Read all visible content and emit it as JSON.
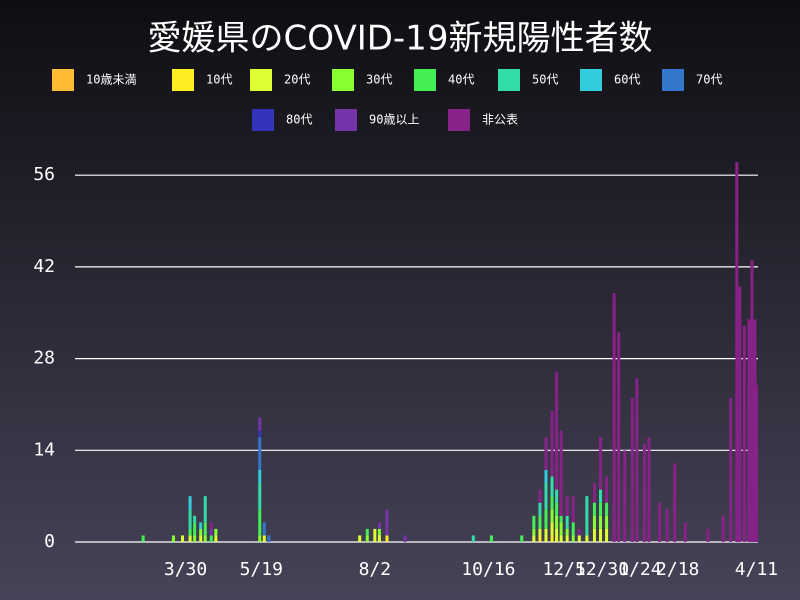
{
  "chart_data": {
    "type": "stacked-bar",
    "title": "愛媛県のCOVID-19新規陽性者数",
    "x": [
      -28,
      -8,
      -2,
      3,
      6,
      10,
      13,
      17,
      20,
      49,
      52,
      55,
      115,
      120,
      125,
      128,
      133,
      145,
      190,
      202,
      222,
      230,
      234,
      238,
      242,
      245,
      248,
      252,
      256,
      260,
      265,
      270,
      274,
      278,
      283,
      286,
      290,
      295,
      298,
      303,
      306,
      313,
      318,
      323,
      330,
      345,
      355,
      360,
      364,
      366,
      369,
      372,
      374,
      376,
      377
    ],
    "xlim": [
      -73,
      378
    ],
    "xticks": [
      {
        "value": 0,
        "label": "3/30"
      },
      {
        "value": 50,
        "label": "5/19"
      },
      {
        "value": 125,
        "label": "8/2"
      },
      {
        "value": 200,
        "label": "10/16"
      },
      {
        "value": 250,
        "label": "12/5"
      },
      {
        "value": 275,
        "label": "12/30"
      },
      {
        "value": 300,
        "label": "1/24"
      },
      {
        "value": 325,
        "label": "2/18"
      },
      {
        "value": 377,
        "label": "4/11"
      }
    ],
    "ylim": [
      0,
      60
    ],
    "yticks": [
      0,
      14,
      28,
      42,
      56
    ],
    "grid": true,
    "series": [
      {
        "name": "10歳未満",
        "color": "#ffbb33",
        "values": [
          0,
          0,
          0,
          0,
          0,
          0,
          0,
          0,
          0,
          0,
          0,
          0,
          0,
          0,
          0,
          0,
          0,
          0,
          0,
          0,
          0,
          0,
          0,
          0,
          0,
          0,
          0,
          0,
          0,
          0,
          0,
          0,
          0,
          0,
          0,
          0,
          0,
          0,
          0,
          0,
          0,
          0,
          0,
          0,
          0,
          0,
          0,
          0,
          0,
          0,
          0,
          0,
          0,
          0,
          0
        ]
      },
      {
        "name": "10代",
        "color": "#ffee22",
        "values": [
          0,
          0,
          0,
          0,
          0,
          0,
          0,
          0,
          0,
          0,
          0,
          0,
          0,
          0,
          0,
          0,
          1,
          0,
          0,
          0,
          0,
          0,
          1,
          0,
          1,
          0,
          0,
          0,
          0,
          0,
          0,
          0,
          0,
          0,
          0,
          0,
          0,
          0,
          0,
          0,
          0,
          0,
          0,
          0,
          0,
          0,
          0,
          0,
          0,
          0,
          0,
          0,
          0,
          0,
          0
        ]
      },
      {
        "name": "20代",
        "color": "#ddff33",
        "values": [
          0,
          0,
          1,
          1,
          0,
          1,
          0,
          0,
          1,
          0,
          1,
          0,
          1,
          0,
          2,
          1,
          0,
          0,
          0,
          0,
          0,
          1,
          1,
          2,
          2,
          2,
          1,
          1,
          0,
          1,
          1,
          2,
          2,
          2,
          0,
          0,
          0,
          0,
          0,
          0,
          0,
          0,
          0,
          0,
          0,
          0,
          0,
          0,
          0,
          0,
          0,
          0,
          0,
          0,
          0
        ]
      },
      {
        "name": "30代",
        "color": "#88ff33",
        "values": [
          0,
          1,
          0,
          0,
          1,
          1,
          1,
          0,
          1,
          1,
          0,
          0,
          0,
          1,
          0,
          1,
          0,
          0,
          0,
          0,
          0,
          1,
          0,
          0,
          2,
          2,
          2,
          1,
          1,
          0,
          0,
          2,
          2,
          2,
          0,
          0,
          0,
          0,
          0,
          0,
          0,
          0,
          0,
          0,
          0,
          0,
          0,
          0,
          0,
          0,
          0,
          0,
          0,
          0,
          0
        ]
      },
      {
        "name": "40代",
        "color": "#44ee55",
        "values": [
          1,
          0,
          0,
          1,
          2,
          0,
          2,
          1,
          0,
          4,
          0,
          0,
          0,
          1,
          0,
          0,
          0,
          0,
          0,
          1,
          1,
          2,
          2,
          3,
          2,
          2,
          1,
          0,
          2,
          0,
          0,
          2,
          2,
          2,
          0,
          0,
          0,
          0,
          0,
          0,
          0,
          0,
          0,
          0,
          0,
          0,
          0,
          0,
          0,
          0,
          0,
          0,
          0,
          0,
          0
        ]
      },
      {
        "name": "50代",
        "color": "#33ddaa",
        "values": [
          0,
          0,
          0,
          3,
          1,
          0,
          4,
          0,
          0,
          4,
          0,
          0,
          0,
          0,
          0,
          0,
          0,
          0,
          1,
          0,
          0,
          0,
          2,
          4,
          3,
          2,
          0,
          2,
          0,
          0,
          6,
          0,
          2,
          0,
          0,
          0,
          0,
          0,
          0,
          0,
          0,
          0,
          0,
          0,
          0,
          0,
          0,
          0,
          0,
          0,
          0,
          0,
          0,
          0,
          0
        ]
      },
      {
        "name": "60代",
        "color": "#33ccdd",
        "values": [
          0,
          0,
          0,
          2,
          0,
          1,
          0,
          0,
          0,
          2,
          0,
          0,
          0,
          0,
          0,
          0,
          0,
          0,
          0,
          0,
          0,
          0,
          0,
          2,
          0,
          0,
          0,
          0,
          0,
          0,
          0,
          0,
          0,
          0,
          0,
          0,
          0,
          0,
          0,
          0,
          0,
          0,
          0,
          0,
          0,
          0,
          0,
          0,
          0,
          0,
          0,
          0,
          0,
          0,
          0
        ]
      },
      {
        "name": "70代",
        "color": "#3377cc",
        "values": [
          0,
          0,
          0,
          0,
          0,
          0,
          0,
          0,
          0,
          5,
          2,
          1,
          0,
          0,
          0,
          0,
          0,
          0,
          0,
          0,
          0,
          0,
          0,
          0,
          0,
          0,
          0,
          0,
          0,
          0,
          0,
          0,
          0,
          0,
          0,
          0,
          0,
          0,
          0,
          0,
          0,
          0,
          0,
          0,
          0,
          0,
          0,
          0,
          0,
          0,
          0,
          0,
          0,
          0,
          0
        ]
      },
      {
        "name": "80代",
        "color": "#3333bb",
        "values": [
          0,
          0,
          0,
          0,
          0,
          0,
          0,
          0,
          0,
          1,
          0,
          0,
          0,
          0,
          0,
          0,
          0,
          0,
          0,
          0,
          0,
          0,
          0,
          0,
          0,
          0,
          0,
          0,
          0,
          0,
          0,
          0,
          0,
          0,
          0,
          0,
          0,
          0,
          0,
          0,
          0,
          0,
          0,
          0,
          0,
          0,
          0,
          0,
          0,
          0,
          0,
          0,
          0,
          0,
          0
        ]
      },
      {
        "name": "90歳以上",
        "color": "#7733aa",
        "values": [
          0,
          0,
          0,
          0,
          0,
          0,
          0,
          1,
          0,
          2,
          0,
          0,
          0,
          0,
          0,
          1,
          4,
          1,
          0,
          0,
          0,
          0,
          0,
          0,
          0,
          0,
          0,
          0,
          0,
          0,
          0,
          0,
          0,
          0,
          0,
          0,
          0,
          0,
          0,
          0,
          0,
          0,
          0,
          0,
          0,
          0,
          0,
          0,
          0,
          0,
          0,
          0,
          0,
          0,
          0
        ]
      },
      {
        "name": "非公表",
        "color": "#882288",
        "values": [
          0,
          0,
          0,
          0,
          0,
          0,
          0,
          1,
          0,
          0,
          0,
          0,
          0,
          0,
          0,
          0,
          0,
          0,
          0,
          0,
          0,
          0,
          2,
          5,
          10,
          18,
          13,
          3,
          4,
          1,
          0,
          3,
          8,
          4,
          38,
          32,
          14,
          22,
          25,
          15,
          16,
          6,
          5,
          12,
          3,
          2,
          4,
          22,
          58,
          39,
          33,
          34,
          43,
          34,
          24
        ]
      }
    ]
  }
}
